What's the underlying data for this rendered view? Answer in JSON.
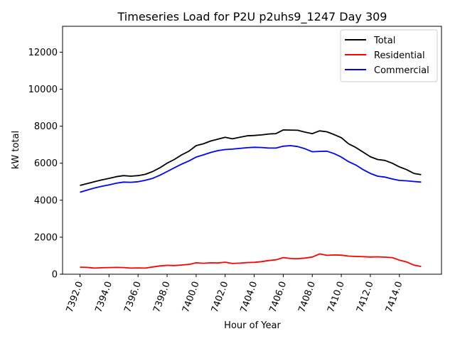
{
  "chart_data": {
    "type": "line",
    "title": "Timeseries Load for P2U p2uhs9_1247  Day 309",
    "xlabel": "Hour of Year",
    "ylabel": "kW total",
    "xlim": [
      7390.8,
      7416.9
    ],
    "ylim": [
      0,
      13400
    ],
    "xticks": [
      7392,
      7394,
      7396,
      7398,
      7400,
      7402,
      7404,
      7406,
      7408,
      7410,
      7412,
      7414
    ],
    "xtick_labels": [
      "7392.0",
      "7394.0",
      "7396.0",
      "7398.0",
      "7400.0",
      "7402.0",
      "7404.0",
      "7406.0",
      "7408.0",
      "7410.0",
      "7412.0",
      "7414.0"
    ],
    "yticks": [
      0,
      2000,
      4000,
      6000,
      8000,
      10000,
      12000
    ],
    "ytick_labels": [
      "0",
      "2000",
      "4000",
      "6000",
      "8000",
      "10000",
      "12000"
    ],
    "legend_position": "top-right",
    "series": [
      {
        "name": "Total",
        "color": "#000000",
        "x": [
          7392.0,
          7392.5,
          7393.0,
          7393.5,
          7394.0,
          7394.5,
          7395.0,
          7395.5,
          7396.0,
          7396.5,
          7397.0,
          7397.5,
          7398.0,
          7398.5,
          7399.0,
          7399.5,
          7400.0,
          7400.5,
          7401.0,
          7401.5,
          7402.0,
          7402.5,
          7403.0,
          7403.5,
          7404.0,
          7404.5,
          7405.0,
          7405.5,
          7406.0,
          7406.5,
          7407.0,
          7407.5,
          7408.0,
          7408.5,
          7409.0,
          7409.5,
          7410.0,
          7410.5,
          7411.0,
          7411.5,
          7412.0,
          7412.5,
          7413.0,
          7413.5,
          7414.0,
          7414.5,
          7415.0,
          7415.5
        ],
        "values": [
          4800,
          4900,
          5000,
          5100,
          5180,
          5270,
          5330,
          5300,
          5330,
          5400,
          5550,
          5750,
          6000,
          6200,
          6450,
          6650,
          6950,
          7050,
          7200,
          7300,
          7400,
          7320,
          7400,
          7480,
          7500,
          7530,
          7580,
          7600,
          7800,
          7790,
          7780,
          7680,
          7600,
          7750,
          7700,
          7550,
          7380,
          7050,
          6850,
          6600,
          6350,
          6200,
          6150,
          6000,
          5800,
          5650,
          5450,
          5380
        ]
      },
      {
        "name": "Residential",
        "color": "#ff0000",
        "x": [
          7392.0,
          7392.5,
          7393.0,
          7393.5,
          7394.0,
          7394.5,
          7395.0,
          7395.5,
          7396.0,
          7396.5,
          7397.0,
          7397.5,
          7398.0,
          7398.5,
          7399.0,
          7399.5,
          7400.0,
          7400.5,
          7401.0,
          7401.5,
          7402.0,
          7402.5,
          7403.0,
          7403.5,
          7404.0,
          7404.5,
          7405.0,
          7405.5,
          7406.0,
          7406.5,
          7407.0,
          7407.5,
          7408.0,
          7408.5,
          7409.0,
          7409.5,
          7410.0,
          7410.5,
          7411.0,
          7411.5,
          7412.0,
          7412.5,
          7413.0,
          7413.5,
          7414.0,
          7414.5,
          7415.0,
          7415.5
        ],
        "values": [
          380,
          370,
          330,
          350,
          360,
          370,
          360,
          330,
          340,
          330,
          390,
          450,
          480,
          470,
          500,
          530,
          620,
          590,
          620,
          610,
          650,
          580,
          600,
          630,
          640,
          680,
          740,
          780,
          900,
          850,
          840,
          870,
          930,
          1100,
          1020,
          1040,
          1030,
          980,
          960,
          950,
          930,
          940,
          920,
          900,
          760,
          660,
          490,
          420
        ]
      },
      {
        "name": "Commercial",
        "color": "#0000ff",
        "x": [
          7392.0,
          7392.5,
          7393.0,
          7393.5,
          7394.0,
          7394.5,
          7395.0,
          7395.5,
          7396.0,
          7396.5,
          7397.0,
          7397.5,
          7398.0,
          7398.5,
          7399.0,
          7399.5,
          7400.0,
          7400.5,
          7401.0,
          7401.5,
          7402.0,
          7402.5,
          7403.0,
          7403.5,
          7404.0,
          7404.5,
          7405.0,
          7405.5,
          7406.0,
          7406.5,
          7407.0,
          7407.5,
          7408.0,
          7408.5,
          7409.0,
          7409.5,
          7410.0,
          7410.5,
          7411.0,
          7411.5,
          7412.0,
          7412.5,
          7413.0,
          7413.5,
          7414.0,
          7414.5,
          7415.0,
          7415.5
        ],
        "values": [
          4430,
          4550,
          4660,
          4750,
          4830,
          4920,
          4980,
          4970,
          5000,
          5080,
          5180,
          5350,
          5550,
          5750,
          5950,
          6120,
          6330,
          6450,
          6580,
          6680,
          6740,
          6760,
          6800,
          6840,
          6860,
          6850,
          6820,
          6820,
          6920,
          6950,
          6900,
          6780,
          6620,
          6640,
          6650,
          6520,
          6330,
          6080,
          5900,
          5650,
          5450,
          5300,
          5250,
          5150,
          5070,
          5050,
          5010,
          4980
        ]
      }
    ]
  }
}
